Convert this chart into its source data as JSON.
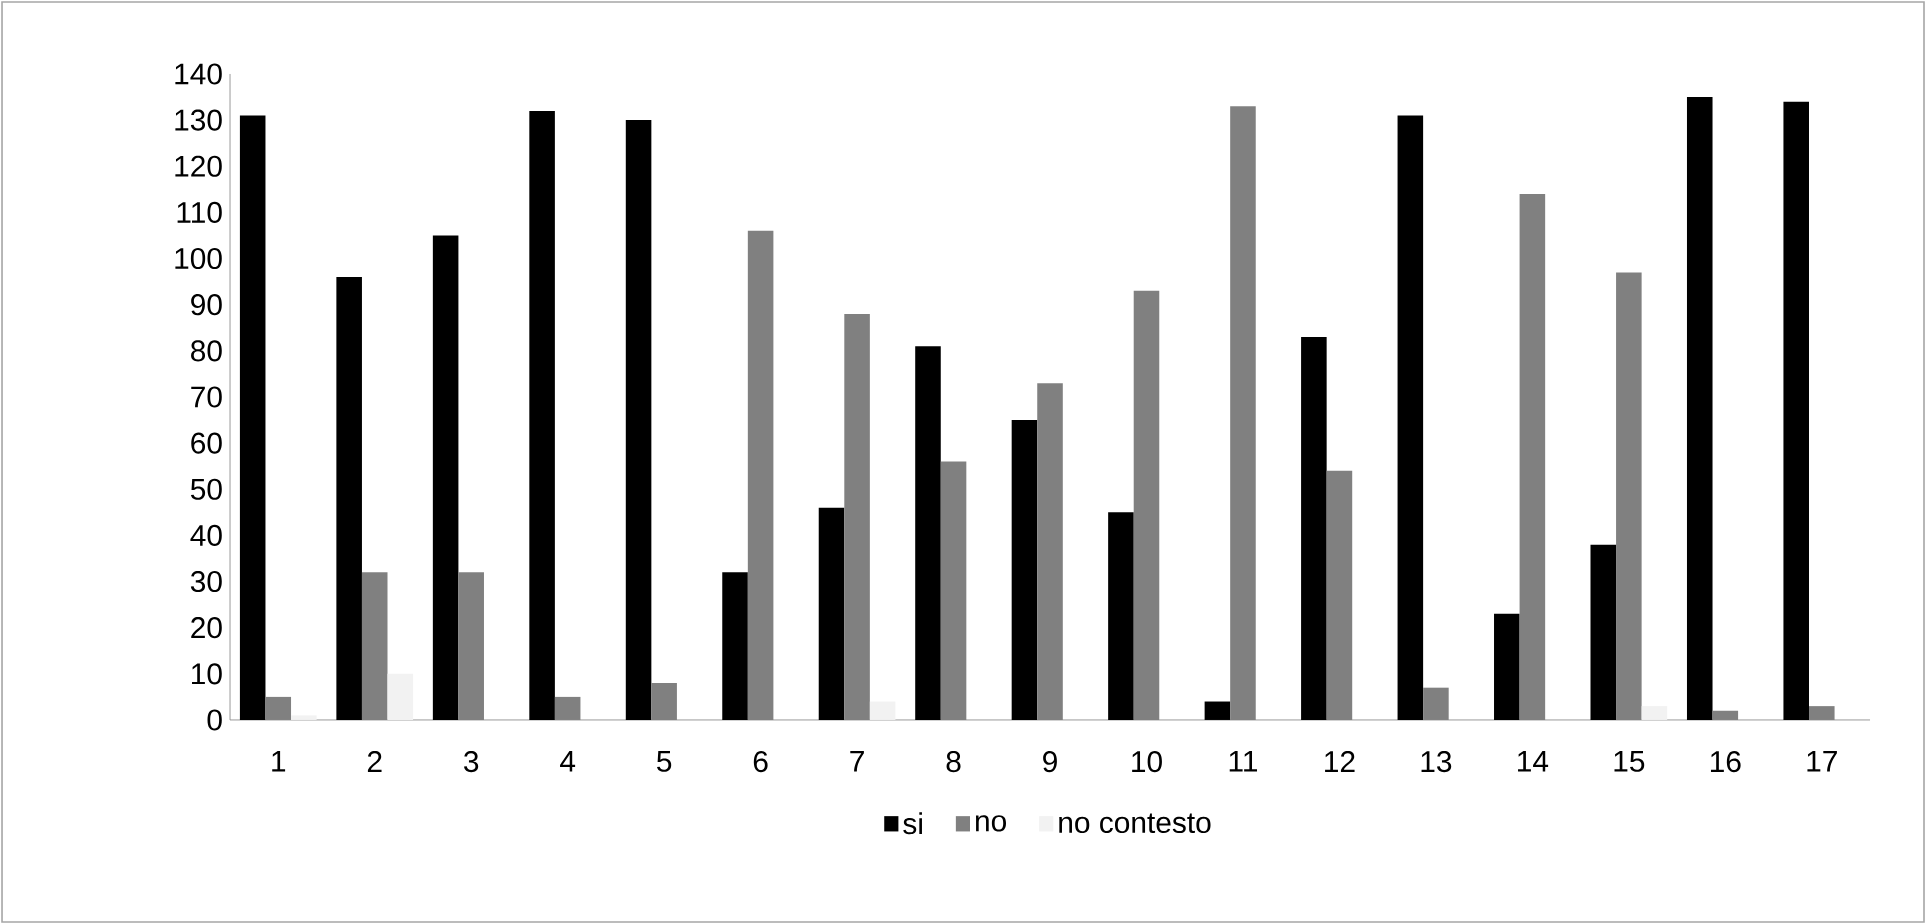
{
  "chart_data": {
    "type": "bar",
    "categories": [
      "1",
      "2",
      "3",
      "4",
      "5",
      "6",
      "7",
      "8",
      "9",
      "10",
      "11",
      "12",
      "13",
      "14",
      "15",
      "16",
      "17"
    ],
    "series": [
      {
        "name": "si",
        "color": "#000000",
        "values": [
          131,
          96,
          105,
          132,
          130,
          32,
          46,
          81,
          65,
          45,
          4,
          83,
          131,
          23,
          38,
          135,
          134
        ]
      },
      {
        "name": "no",
        "color": "#808080",
        "values": [
          5,
          32,
          32,
          5,
          8,
          106,
          88,
          56,
          73,
          93,
          133,
          54,
          7,
          114,
          97,
          2,
          3
        ]
      },
      {
        "name": "no contesto",
        "color": "#f2f2f2",
        "values": [
          1,
          10,
          0,
          0,
          0,
          0,
          4,
          0,
          0,
          0,
          0,
          0,
          0,
          0,
          3,
          0,
          0
        ]
      }
    ],
    "ylim": [
      0,
      140
    ],
    "yticks": [
      0,
      10,
      20,
      30,
      40,
      50,
      60,
      70,
      80,
      90,
      100,
      110,
      120,
      130,
      140
    ],
    "grid": false,
    "legend": "bottom"
  }
}
